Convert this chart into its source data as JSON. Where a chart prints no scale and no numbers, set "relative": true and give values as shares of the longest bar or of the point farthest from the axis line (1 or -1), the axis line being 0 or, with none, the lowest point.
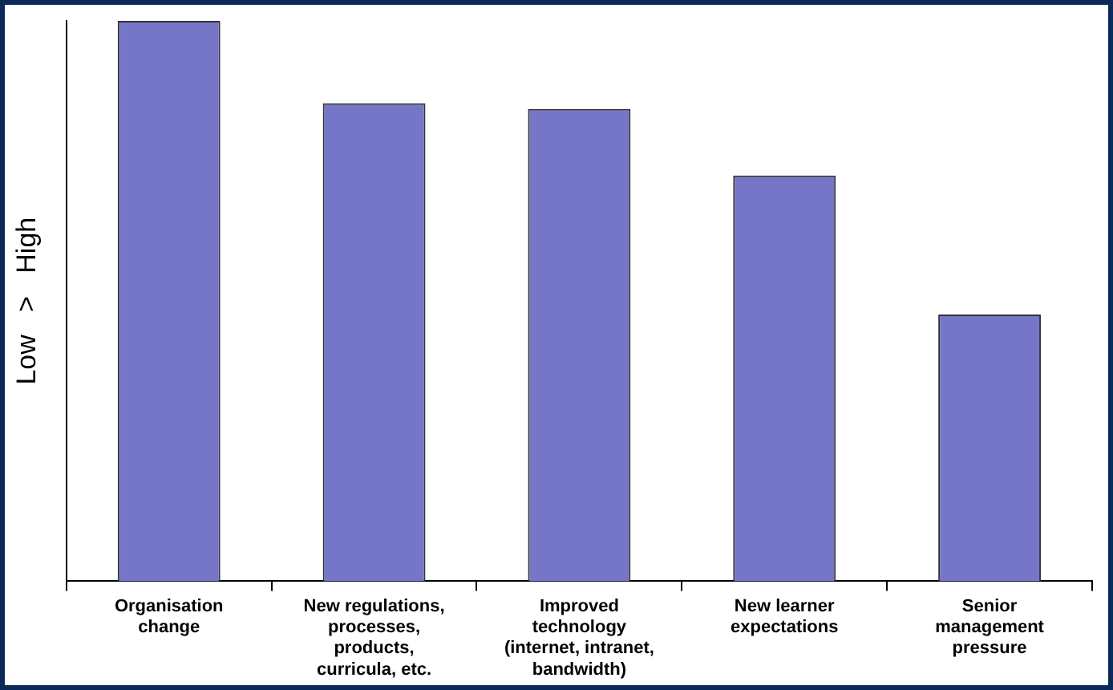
{
  "chart_data": {
    "type": "bar",
    "relative": true,
    "ylabel": "Low   >   High",
    "categories": [
      "Organisation change",
      "New regulations, processes, products, curricula, etc.",
      "Improved technology (internet, intranet, bandwidth)",
      "New learner expectations",
      "Senior management pressure"
    ],
    "values": [
      1,
      0.853,
      0.843,
      0.724,
      0.476
    ],
    "color": "#7676c8",
    "grid": false,
    "legend": false
  }
}
